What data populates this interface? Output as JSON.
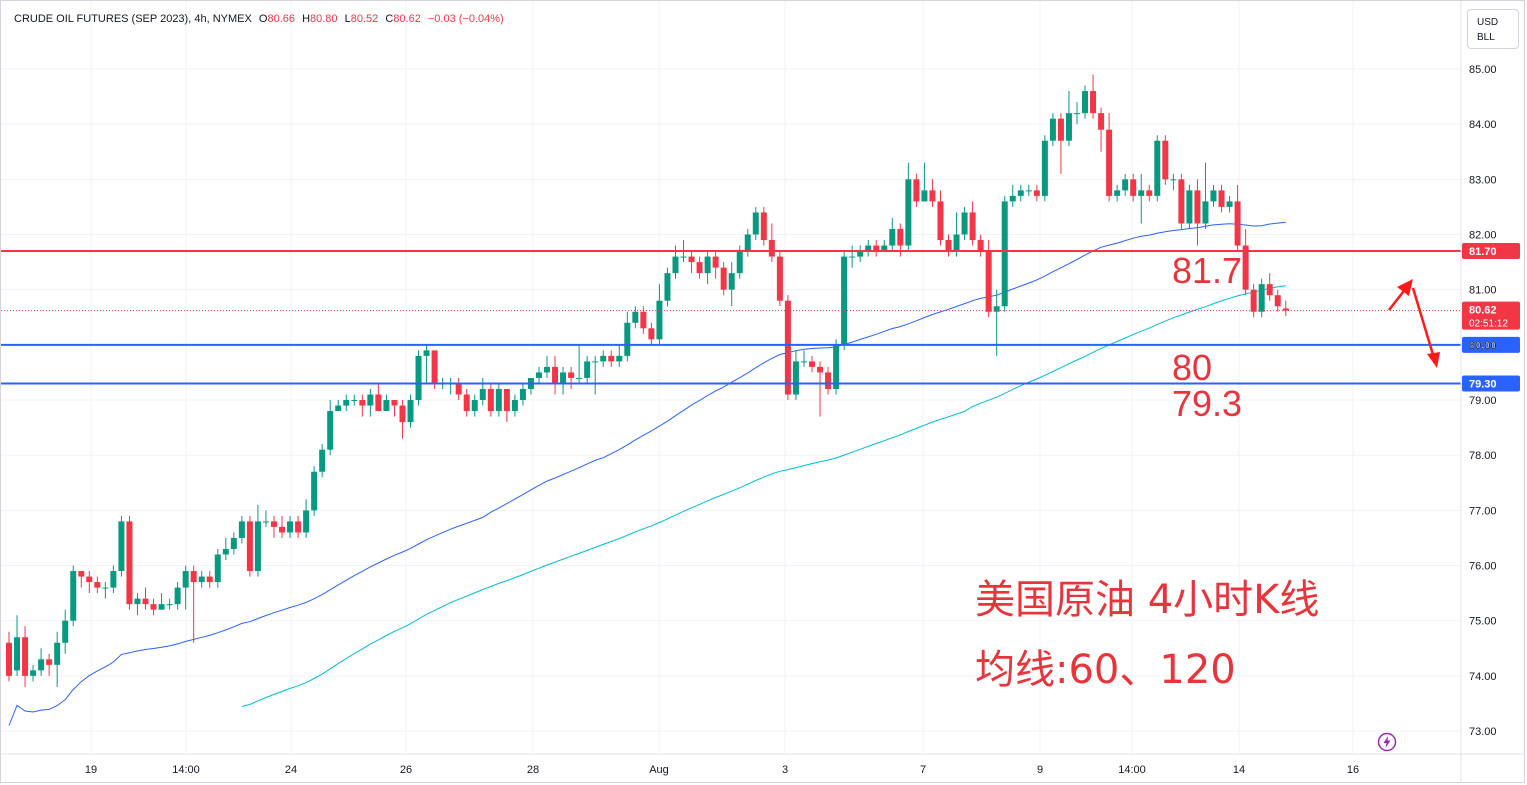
{
  "header": {
    "symbol": "CRUDE OIL FUTURES (SEP 2023)",
    "interval": "4h",
    "exchange": "NYMEX",
    "o_label": "O",
    "o_value": "80.66",
    "h_label": "H",
    "h_value": "80.80",
    "l_label": "L",
    "l_value": "80.52",
    "c_label": "C",
    "c_value": "80.62",
    "change": "−0.03 (−0.04%)"
  },
  "currency": {
    "line1": "USD",
    "line2": "BLL"
  },
  "colors": {
    "up": "#089981",
    "down": "#f23645",
    "ma60": "#2962ff",
    "ma120": "#00bcd4",
    "hline_resist": "#f23645",
    "hline_support": "#2962ff",
    "annotation": "#e8343a"
  },
  "annotations": {
    "title": "美国原油 4小时K线",
    "ma_note": "均线:60、120",
    "lvl_1": "81.7",
    "lvl_2": "80",
    "lvl_3": "79.3"
  },
  "chart_data": {
    "type": "candlestick",
    "y_ticks": [
      "85.00",
      "84.00",
      "83.00",
      "82.00",
      "81.00",
      "80.00",
      "79.00",
      "78.00",
      "77.00",
      "76.00",
      "75.00",
      "74.00",
      "73.00"
    ],
    "x_labels": [
      "19",
      "14:00",
      "24",
      "26",
      "28",
      "Aug",
      "3",
      "7",
      "9",
      "14:00",
      "14",
      "16"
    ],
    "ylim": [
      72.35,
      85.55
    ],
    "horizontal_lines": [
      {
        "price": 81.7,
        "label": "81.70",
        "color": "#f23645"
      },
      {
        "price": 80.0,
        "label": "80.00",
        "color": "#2962ff"
      },
      {
        "price": 79.3,
        "label": "79.30",
        "color": "#2962ff"
      }
    ],
    "last_price": {
      "value": "80.62",
      "countdown": "02:51:12"
    },
    "candles": [
      [
        74.6,
        74.0,
        74.8,
        73.9
      ],
      [
        74.1,
        74.7,
        75.1,
        74.0
      ],
      [
        74.7,
        74.0,
        74.9,
        73.8
      ],
      [
        74.0,
        74.1,
        74.2,
        73.9
      ],
      [
        74.1,
        74.3,
        74.5,
        74.0
      ],
      [
        74.3,
        74.2,
        74.4,
        74.0
      ],
      [
        74.2,
        74.6,
        74.8,
        73.8
      ],
      [
        74.6,
        75.0,
        75.2,
        74.4
      ],
      [
        75.0,
        75.9,
        76.0,
        74.9
      ],
      [
        75.9,
        75.8,
        75.9,
        75.6
      ],
      [
        75.8,
        75.7,
        75.9,
        75.5
      ],
      [
        75.7,
        75.6,
        75.8,
        75.5
      ],
      [
        75.6,
        75.6,
        75.7,
        75.4
      ],
      [
        75.6,
        75.9,
        76.0,
        75.5
      ],
      [
        75.9,
        76.8,
        76.9,
        75.8
      ],
      [
        76.8,
        75.3,
        76.9,
        75.2
      ],
      [
        75.3,
        75.4,
        75.5,
        75.1
      ],
      [
        75.4,
        75.3,
        75.6,
        75.2
      ],
      [
        75.3,
        75.2,
        75.4,
        75.1
      ],
      [
        75.2,
        75.3,
        75.5,
        75.2
      ],
      [
        75.3,
        75.3,
        75.4,
        75.2
      ],
      [
        75.3,
        75.6,
        75.7,
        75.2
      ],
      [
        75.6,
        75.9,
        76.0,
        75.2
      ],
      [
        75.9,
        75.7,
        76.0,
        74.6
      ],
      [
        75.7,
        75.8,
        75.9,
        75.6
      ],
      [
        75.8,
        75.7,
        75.9,
        75.6
      ],
      [
        75.7,
        76.2,
        76.3,
        75.6
      ],
      [
        76.2,
        76.3,
        76.5,
        76.1
      ],
      [
        76.3,
        76.5,
        76.6,
        76.2
      ],
      [
        76.5,
        76.8,
        76.9,
        76.4
      ],
      [
        76.8,
        75.9,
        76.9,
        75.8
      ],
      [
        75.9,
        76.8,
        77.1,
        75.8
      ],
      [
        76.8,
        76.8,
        77.0,
        76.7
      ],
      [
        76.8,
        76.7,
        76.9,
        76.5
      ],
      [
        76.7,
        76.6,
        76.9,
        76.5
      ],
      [
        76.6,
        76.8,
        76.9,
        76.5
      ],
      [
        76.8,
        76.6,
        76.9,
        76.5
      ],
      [
        76.6,
        77.0,
        77.2,
        76.5
      ],
      [
        77.0,
        77.7,
        77.8,
        76.9
      ],
      [
        77.7,
        78.1,
        78.2,
        77.6
      ],
      [
        78.1,
        78.8,
        79.0,
        78.0
      ],
      [
        78.8,
        78.9,
        79.0,
        78.8
      ],
      [
        78.9,
        79.0,
        79.1,
        78.8
      ],
      [
        79.0,
        79.0,
        79.1,
        78.9
      ],
      [
        79.0,
        78.9,
        79.1,
        78.7
      ],
      [
        78.9,
        79.1,
        79.2,
        78.7
      ],
      [
        79.1,
        78.8,
        79.3,
        78.8
      ],
      [
        78.8,
        79.0,
        79.1,
        78.8
      ],
      [
        79.0,
        78.9,
        79.0,
        78.7
      ],
      [
        78.9,
        78.6,
        79.0,
        78.3
      ],
      [
        78.6,
        79.0,
        79.1,
        78.5
      ],
      [
        79.0,
        79.8,
        79.9,
        78.9
      ],
      [
        79.8,
        79.9,
        80.0,
        79.3
      ],
      [
        79.9,
        79.3,
        79.9,
        79.2
      ],
      [
        79.3,
        79.3,
        79.4,
        79.2
      ],
      [
        79.3,
        79.3,
        79.4,
        79.1
      ],
      [
        79.3,
        79.1,
        79.4,
        79.0
      ],
      [
        79.1,
        78.8,
        79.2,
        78.7
      ],
      [
        78.8,
        79.0,
        79.1,
        78.7
      ],
      [
        79.0,
        79.2,
        79.4,
        78.9
      ],
      [
        79.2,
        78.8,
        79.3,
        78.7
      ],
      [
        78.8,
        79.2,
        79.3,
        78.7
      ],
      [
        79.2,
        78.8,
        79.2,
        78.6
      ],
      [
        78.8,
        79.0,
        79.1,
        78.7
      ],
      [
        79.0,
        79.2,
        79.3,
        78.9
      ],
      [
        79.2,
        79.4,
        79.4,
        79.1
      ],
      [
        79.4,
        79.5,
        79.6,
        79.3
      ],
      [
        79.5,
        79.6,
        79.8,
        79.4
      ],
      [
        79.6,
        79.3,
        79.8,
        79.1
      ],
      [
        79.3,
        79.5,
        79.6,
        79.1
      ],
      [
        79.5,
        79.4,
        79.6,
        79.2
      ],
      [
        79.4,
        79.4,
        80.0,
        79.3
      ],
      [
        79.4,
        79.7,
        79.8,
        79.3
      ],
      [
        79.7,
        79.7,
        79.8,
        79.1
      ],
      [
        79.7,
        79.8,
        79.9,
        79.6
      ],
      [
        79.8,
        79.7,
        79.9,
        79.6
      ],
      [
        79.7,
        79.8,
        80.0,
        79.6
      ],
      [
        79.8,
        80.4,
        80.6,
        79.7
      ],
      [
        80.4,
        80.6,
        80.7,
        80.3
      ],
      [
        80.6,
        80.3,
        80.7,
        80.2
      ],
      [
        80.3,
        80.1,
        80.4,
        80.0
      ],
      [
        80.1,
        80.8,
        81.1,
        80.0
      ],
      [
        80.8,
        81.3,
        81.4,
        80.7
      ],
      [
        81.3,
        81.6,
        81.8,
        81.2
      ],
      [
        81.6,
        81.6,
        81.9,
        81.5
      ],
      [
        81.6,
        81.5,
        81.7,
        81.3
      ],
      [
        81.5,
        81.3,
        81.6,
        81.2
      ],
      [
        81.3,
        81.6,
        81.7,
        81.1
      ],
      [
        81.6,
        81.4,
        81.7,
        81.2
      ],
      [
        81.4,
        81.0,
        81.5,
        80.9
      ],
      [
        81.0,
        81.3,
        81.5,
        80.7
      ],
      [
        81.3,
        81.7,
        81.8,
        81.2
      ],
      [
        81.7,
        82.0,
        82.1,
        81.6
      ],
      [
        82.0,
        82.4,
        82.5,
        81.9
      ],
      [
        82.4,
        81.9,
        82.5,
        81.8
      ],
      [
        81.9,
        81.6,
        82.2,
        81.5
      ],
      [
        81.6,
        80.8,
        81.7,
        80.7
      ],
      [
        80.8,
        79.1,
        80.9,
        79.0
      ],
      [
        79.1,
        79.7,
        79.9,
        79.0
      ],
      [
        79.7,
        79.7,
        79.9,
        79.6
      ],
      [
        79.7,
        79.6,
        79.8,
        79.5
      ],
      [
        79.6,
        79.5,
        79.7,
        78.7
      ],
      [
        79.5,
        79.2,
        79.6,
        79.1
      ],
      [
        79.2,
        80.0,
        80.1,
        79.1
      ],
      [
        80.0,
        81.6,
        81.7,
        79.9
      ],
      [
        81.6,
        81.6,
        81.8,
        81.4
      ],
      [
        81.6,
        81.7,
        81.8,
        81.5
      ],
      [
        81.7,
        81.8,
        81.9,
        81.6
      ],
      [
        81.8,
        81.7,
        81.9,
        81.6
      ],
      [
        81.7,
        81.8,
        81.9,
        81.7
      ],
      [
        81.8,
        82.1,
        82.3,
        81.7
      ],
      [
        82.1,
        81.8,
        82.2,
        81.6
      ],
      [
        81.8,
        83.0,
        83.3,
        81.7
      ],
      [
        83.0,
        82.6,
        83.1,
        82.5
      ],
      [
        82.6,
        82.8,
        83.3,
        82.6
      ],
      [
        82.8,
        82.6,
        83.0,
        82.5
      ],
      [
        82.6,
        81.9,
        82.8,
        81.8
      ],
      [
        81.9,
        81.7,
        82.0,
        81.6
      ],
      [
        81.7,
        82.0,
        82.4,
        81.6
      ],
      [
        82.0,
        82.4,
        82.5,
        81.9
      ],
      [
        82.4,
        81.9,
        82.6,
        81.8
      ],
      [
        81.9,
        81.7,
        82.0,
        81.6
      ],
      [
        81.7,
        80.6,
        81.9,
        80.5
      ],
      [
        80.6,
        80.7,
        81.0,
        79.8
      ],
      [
        80.7,
        82.6,
        82.7,
        80.6
      ],
      [
        82.6,
        82.7,
        82.9,
        82.5
      ],
      [
        82.7,
        82.8,
        82.9,
        82.6
      ],
      [
        82.8,
        82.8,
        82.9,
        82.7
      ],
      [
        82.8,
        82.7,
        82.9,
        82.6
      ],
      [
        82.7,
        83.7,
        83.8,
        82.6
      ],
      [
        83.7,
        84.1,
        84.2,
        83.6
      ],
      [
        84.1,
        83.7,
        84.2,
        83.1
      ],
      [
        83.7,
        84.2,
        84.6,
        83.6
      ],
      [
        84.2,
        84.2,
        84.4,
        84.0
      ],
      [
        84.2,
        84.6,
        84.7,
        84.1
      ],
      [
        84.6,
        84.2,
        84.9,
        84.1
      ],
      [
        84.2,
        83.9,
        84.3,
        83.5
      ],
      [
        83.9,
        82.7,
        84.2,
        82.6
      ],
      [
        82.7,
        82.8,
        82.9,
        82.6
      ],
      [
        82.8,
        83.0,
        83.1,
        82.7
      ],
      [
        83.0,
        82.7,
        83.1,
        82.6
      ],
      [
        82.7,
        82.8,
        83.1,
        82.2
      ],
      [
        82.8,
        82.7,
        82.9,
        82.6
      ],
      [
        82.7,
        83.7,
        83.8,
        82.6
      ],
      [
        83.7,
        83.0,
        83.8,
        82.9
      ],
      [
        83.0,
        83.0,
        83.1,
        82.8
      ],
      [
        83.0,
        82.2,
        83.1,
        82.1
      ],
      [
        82.2,
        82.8,
        82.9,
        82.1
      ],
      [
        82.8,
        82.2,
        83.0,
        81.8
      ],
      [
        82.2,
        82.6,
        83.3,
        82.1
      ],
      [
        82.6,
        82.8,
        82.9,
        82.5
      ],
      [
        82.8,
        82.5,
        82.9,
        82.4
      ],
      [
        82.5,
        82.6,
        82.7,
        82.4
      ],
      [
        82.6,
        81.8,
        82.9,
        81.7
      ],
      [
        81.8,
        81.0,
        82.1,
        80.9
      ],
      [
        81.0,
        80.6,
        81.1,
        80.5
      ],
      [
        80.6,
        81.1,
        81.2,
        80.5
      ],
      [
        81.1,
        80.9,
        81.3,
        80.8
      ],
      [
        80.9,
        80.7,
        81.0,
        80.6
      ],
      [
        80.66,
        80.62,
        80.8,
        80.52
      ]
    ]
  }
}
